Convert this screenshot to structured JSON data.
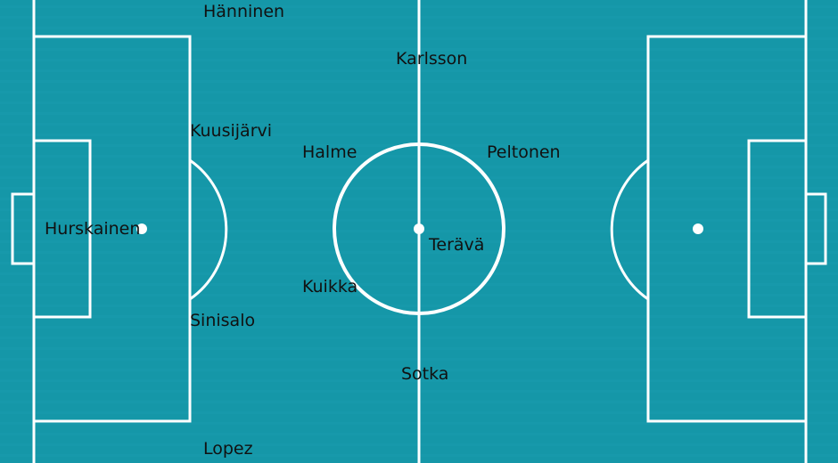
{
  "pitch": {
    "grass_color": "#1597a8",
    "stripe_color": "#1a9cad",
    "line_color": "#ffffff",
    "label_color": "#111111"
  },
  "players": [
    {
      "name": "Hänninen"
    },
    {
      "name": "Karlsson"
    },
    {
      "name": "Kuusijärvi"
    },
    {
      "name": "Halme"
    },
    {
      "name": "Peltonen"
    },
    {
      "name": "Hurskainen"
    },
    {
      "name": "Terävä"
    },
    {
      "name": "Kuikka"
    },
    {
      "name": "Sinisalo"
    },
    {
      "name": "Sotka"
    },
    {
      "name": "Lopez"
    }
  ]
}
